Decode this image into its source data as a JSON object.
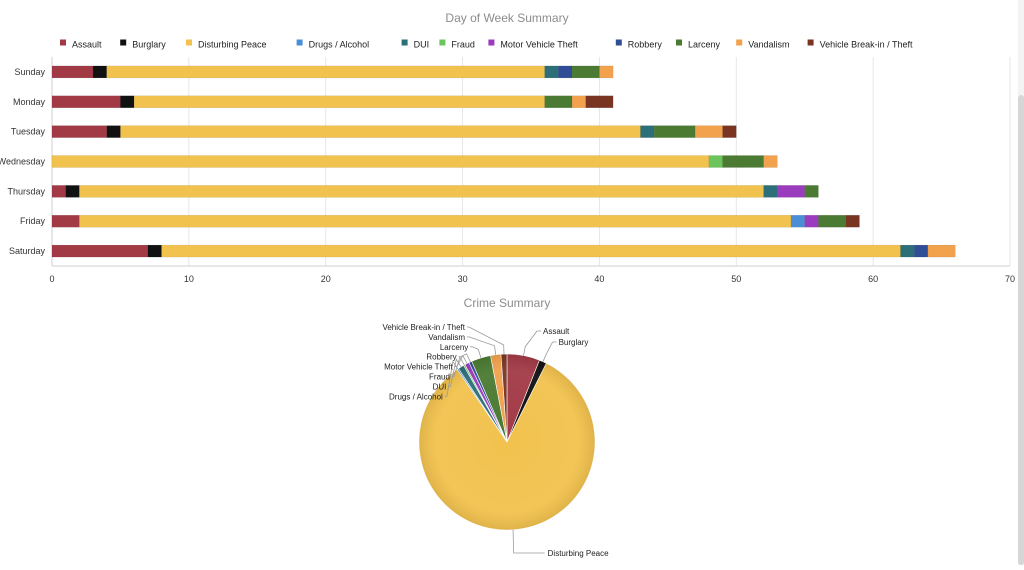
{
  "charts": [
    {
      "chart_data": {
        "type": "bar",
        "orientation": "horizontal",
        "stacked": true,
        "title": "Day of Week Summary",
        "xlabel": "",
        "ylabel": "",
        "xlim": [
          0,
          70
        ],
        "xticks": [
          0,
          10,
          20,
          30,
          40,
          50,
          60,
          70
        ],
        "grid": true,
        "legend_position": "top",
        "categories": [
          "Sunday",
          "Monday",
          "Tuesday",
          "Wednesday",
          "Thursday",
          "Friday",
          "Saturday"
        ],
        "series": [
          {
            "name": "Assault",
            "color": "#a23a46",
            "values": [
              3,
              5,
              4,
              0,
              1,
              2,
              7
            ]
          },
          {
            "name": "Burglary",
            "color": "#111111",
            "values": [
              1,
              1,
              1,
              0,
              1,
              0,
              1
            ]
          },
          {
            "name": "Disturbing Peace",
            "color": "#f2c24e",
            "values": [
              32,
              30,
              38,
              48,
              50,
              52,
              54
            ]
          },
          {
            "name": "Drugs / Alcohol",
            "color": "#4a8fd6",
            "values": [
              0,
              0,
              0,
              0,
              0,
              1,
              0
            ]
          },
          {
            "name": "DUI",
            "color": "#2c6f78",
            "values": [
              1,
              0,
              1,
              0,
              1,
              0,
              1
            ]
          },
          {
            "name": "Fraud",
            "color": "#6cc45c",
            "values": [
              0,
              0,
              0,
              1,
              0,
              0,
              0
            ]
          },
          {
            "name": "Motor Vehicle Theft",
            "color": "#9b3bbd",
            "values": [
              0,
              0,
              0,
              0,
              2,
              1,
              0
            ]
          },
          {
            "name": "Robbery",
            "color": "#2f4e96",
            "values": [
              1,
              0,
              0,
              0,
              0,
              0,
              1
            ]
          },
          {
            "name": "Larceny",
            "color": "#4b7a32",
            "values": [
              2,
              2,
              3,
              3,
              1,
              2,
              0
            ]
          },
          {
            "name": "Vandalism",
            "color": "#f2a14d",
            "values": [
              1,
              1,
              2,
              1,
              0,
              0,
              2
            ]
          },
          {
            "name": "Vehicle Break-in / Theft",
            "color": "#7a3522",
            "values": [
              0,
              2,
              1,
              0,
              0,
              1,
              0
            ]
          }
        ]
      }
    },
    {
      "chart_data": {
        "type": "pie",
        "title": "Crime Summary",
        "slices": [
          {
            "label": "Assault",
            "color": "#a23a46",
            "value": 22
          },
          {
            "label": "Burglary",
            "color": "#111111",
            "value": 5
          },
          {
            "label": "Disturbing Peace",
            "color": "#f2c24e",
            "value": 304
          },
          {
            "label": "Drugs / Alcohol",
            "color": "#4a8fd6",
            "value": 1
          },
          {
            "label": "DUI",
            "color": "#2c6f78",
            "value": 4
          },
          {
            "label": "Fraud",
            "color": "#6cc45c",
            "value": 1
          },
          {
            "label": "Motor Vehicle Theft",
            "color": "#9b3bbd",
            "value": 3
          },
          {
            "label": "Robbery",
            "color": "#2f4e96",
            "value": 2
          },
          {
            "label": "Larceny",
            "color": "#4b7a32",
            "value": 13
          },
          {
            "label": "Vandalism",
            "color": "#f2a14d",
            "value": 7
          },
          {
            "label": "Vehicle Break-in / Theft",
            "color": "#7a3522",
            "value": 4
          }
        ]
      }
    }
  ]
}
